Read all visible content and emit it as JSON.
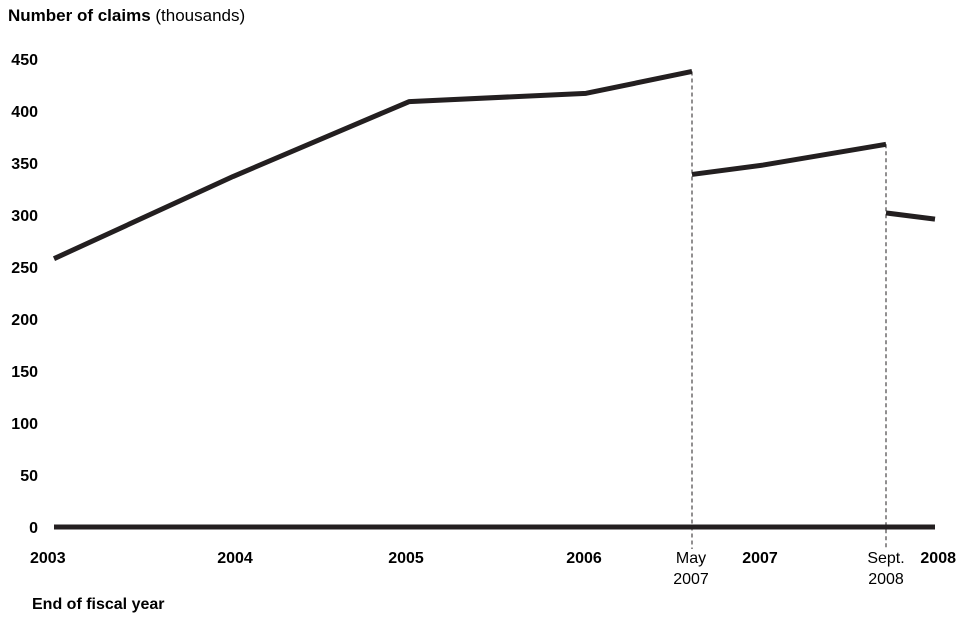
{
  "chart_data": {
    "type": "line",
    "title": "",
    "ylabel_bold": "Number of claims",
    "ylabel_unit": "(thousands)",
    "xlabel": "End of fiscal year",
    "ylim": [
      0,
      450
    ],
    "yticks": [
      "0",
      "50",
      "100",
      "150",
      "200",
      "250",
      "300",
      "350",
      "400",
      "450"
    ],
    "grid": false,
    "legend": "none",
    "line_color": "#231f20",
    "x_ticks": [
      {
        "label": "2003",
        "style": "bold"
      },
      {
        "label": "2004",
        "style": "bold"
      },
      {
        "label": "2005",
        "style": "bold"
      },
      {
        "label": "2006",
        "style": "bold"
      },
      {
        "label": "May",
        "label2": "2007",
        "style": "plain"
      },
      {
        "label": "2007",
        "style": "bold"
      },
      {
        "label": "Sept.",
        "label2": "2008",
        "style": "plain"
      },
      {
        "label": "2008",
        "style": "bold"
      }
    ],
    "series": [
      {
        "segment": "2003-May 2007",
        "x": [
          "2003",
          "2004",
          "2005",
          "2006",
          "May 2007"
        ],
        "values": [
          258,
          337,
          409,
          417,
          438
        ]
      },
      {
        "segment": "May 2007-Sept. 2008",
        "x": [
          "May 2007",
          "2007",
          "Sept. 2008"
        ],
        "values": [
          339,
          348,
          368
        ]
      },
      {
        "segment": "Sept. 2008-2008",
        "x": [
          "Sept. 2008",
          "2008"
        ],
        "values": [
          302,
          296
        ]
      }
    ],
    "reference_lines": [
      "May 2007",
      "Sept. 2008"
    ]
  }
}
